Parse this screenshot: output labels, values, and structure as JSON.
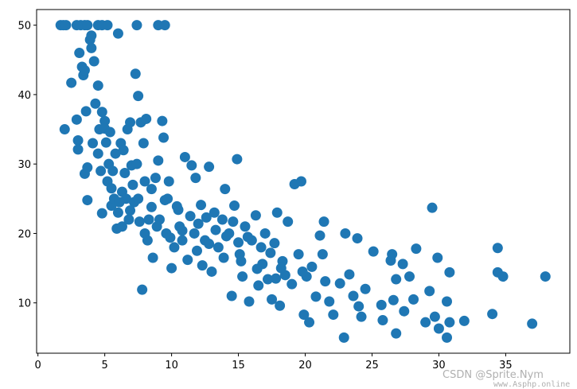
{
  "chart_data": {
    "type": "scatter",
    "color": "#1f77b4",
    "x": [
      1.7,
      1.9,
      2.1,
      2.9,
      3.2,
      3.5,
      3.7,
      4.5,
      4.8,
      5.2,
      7.4,
      9.0,
      9.5,
      2.0,
      2.5,
      2.9,
      3.0,
      3.0,
      3.1,
      3.3,
      3.4,
      3.5,
      3.6,
      3.5,
      3.7,
      3.7,
      3.9,
      4.0,
      4.0,
      4.2,
      4.1,
      4.3,
      4.5,
      4.5,
      4.6,
      4.7,
      4.8,
      4.8,
      5.0,
      5.0,
      5.1,
      5.2,
      5.3,
      5.4,
      5.5,
      5.6,
      5.7,
      5.8,
      5.9,
      6.0,
      6.0,
      6.2,
      6.3,
      6.4,
      6.5,
      6.6,
      6.7,
      6.8,
      6.9,
      7.0,
      7.1,
      7.2,
      7.3,
      7.4,
      7.5,
      7.6,
      7.7,
      7.8,
      7.9,
      8.0,
      8.0,
      8.1,
      8.3,
      8.5,
      8.6,
      8.8,
      8.9,
      9.0,
      9.3,
      9.4,
      9.5,
      9.6,
      9.8,
      10.0,
      10.2,
      10.4,
      10.6,
      10.8,
      11.0,
      11.2,
      11.5,
      11.7,
      11.8,
      12.0,
      12.3,
      12.5,
      12.8,
      13.0,
      13.2,
      13.5,
      13.8,
      14.0,
      14.3,
      14.5,
      14.7,
      14.9,
      15.1,
      15.3,
      15.5,
      15.8,
      16.0,
      16.3,
      16.5,
      16.8,
      17.0,
      17.2,
      17.5,
      17.7,
      17.9,
      18.1,
      18.3,
      18.5,
      18.7,
      19.0,
      19.2,
      19.5,
      19.7,
      19.9,
      20.1,
      20.3,
      20.5,
      20.8,
      21.1,
      21.3,
      21.4,
      21.5,
      21.8,
      22.1,
      22.6,
      22.9,
      23.0,
      23.3,
      23.6,
      23.9,
      24.0,
      24.2,
      24.5,
      25.1,
      25.7,
      25.8,
      26.4,
      26.5,
      26.6,
      26.8,
      26.8,
      27.3,
      27.4,
      27.8,
      28.1,
      28.3,
      29.0,
      29.3,
      29.5,
      29.7,
      29.9,
      30.0,
      30.6,
      30.6,
      30.8,
      30.8,
      31.9,
      34.0,
      34.4,
      34.4,
      34.8,
      36.98,
      37.97,
      6.3,
      6.9,
      8.5,
      9.1,
      9.7,
      10.5,
      11.4,
      12.6,
      13.3,
      14.1,
      15.0,
      15.7,
      16.7,
      17.4,
      18.2,
      19.8,
      11.9,
      13.9,
      15.2,
      16.4,
      17.8,
      7.5,
      6.1,
      5.5,
      8.2,
      9.9,
      10.8,
      12.2,
      14.6,
      12.8
    ],
    "values": [
      50,
      50,
      50,
      50,
      50,
      50,
      50,
      50,
      50,
      50,
      50,
      50,
      50,
      35,
      41.7,
      36.4,
      33.4,
      32.1,
      46,
      44,
      42.8,
      43.5,
      37.6,
      28.6,
      29.5,
      24.8,
      47.9,
      48.5,
      46.7,
      44.8,
      33,
      38.7,
      41.3,
      31.5,
      35,
      29,
      37.5,
      22.9,
      36.2,
      35.1,
      33.1,
      27.5,
      30,
      34.6,
      24,
      29,
      25,
      31.5,
      20.7,
      48.8,
      23,
      33,
      26,
      32,
      28.7,
      25,
      35,
      22,
      36,
      29.8,
      27,
      24.5,
      43,
      30,
      39.8,
      21.7,
      36,
      11.9,
      33,
      27.5,
      20,
      36.5,
      22,
      26.4,
      16.5,
      28,
      21,
      30.5,
      36.2,
      33.8,
      24.8,
      20,
      27.5,
      15,
      18,
      23.9,
      21,
      19,
      31,
      16.2,
      29.8,
      20,
      28,
      21.4,
      15.4,
      19,
      29.6,
      14.5,
      23,
      18,
      22,
      26.4,
      20,
      11,
      24,
      30.7,
      17,
      13.8,
      21,
      10.2,
      19,
      22.6,
      12.5,
      15.6,
      20,
      13.4,
      10.5,
      18.6,
      23,
      9.6,
      16,
      14,
      21.7,
      12.7,
      27.1,
      17,
      27.5,
      8.3,
      13.8,
      7.2,
      15.2,
      10.9,
      19.7,
      17,
      21.7,
      13.1,
      10.2,
      8.3,
      12.8,
      5,
      20,
      14.1,
      11,
      19.3,
      9.5,
      8,
      12,
      17.4,
      9.7,
      7.5,
      16.1,
      17,
      10.4,
      13.4,
      5.6,
      15.6,
      8.8,
      13.8,
      10.5,
      17.8,
      7.2,
      11.7,
      23.7,
      8,
      16.5,
      6.3,
      5,
      10.2,
      14.4,
      7.2,
      7.4,
      8.4,
      17.9,
      14.4,
      13.8,
      7,
      13.8,
      21,
      23.3,
      23.8,
      22,
      25,
      23.4,
      22.5,
      22.3,
      20.5,
      19.6,
      18.7,
      19.5,
      18,
      17.2,
      15,
      14.5,
      17.5,
      16.5,
      16,
      14.9,
      13.5,
      25,
      24.5,
      26.5,
      19,
      19.4,
      20.4,
      24.1,
      21.7,
      18.5
    ],
    "xlim": [
      -0.1,
      39.8
    ],
    "ylim": [
      2.75,
      52.25
    ],
    "xticks": [
      0,
      5,
      10,
      15,
      20,
      25,
      30,
      35
    ],
    "yticks": [
      10,
      20,
      30,
      40,
      50
    ]
  },
  "watermark": {
    "line1": "CSDN @Sprite.Nym",
    "line2": "www.Asphp.online"
  }
}
